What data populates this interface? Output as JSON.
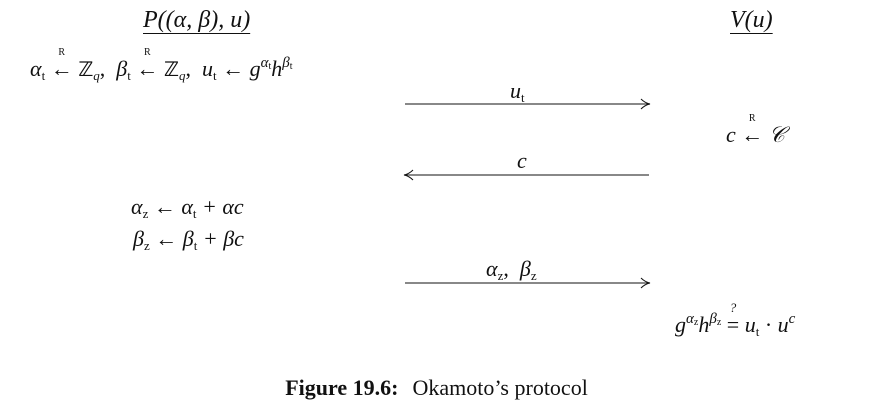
{
  "prover": {
    "title": "P((α, β), u)",
    "line1": {
      "alpha": "α",
      "t": "t",
      "rand": "R",
      "Zq": "ℤ",
      "q": "q",
      "beta": "β",
      "u": "u",
      "arrow": "←",
      "g": "g",
      "h": "h"
    },
    "alpha_z": {
      "lhs": "α",
      "z": "z",
      "arrow": "←",
      "a": "α",
      "t": "t",
      "rest": "+ αc"
    },
    "beta_z": {
      "lhs": "β",
      "z": "z",
      "arrow": "←",
      "a": "β",
      "t": "t",
      "rest": "+ βc"
    }
  },
  "verifier": {
    "title": "V(u)",
    "challenge": {
      "c": "c",
      "rand": "R",
      "arrow": "←",
      "set": "𝒞"
    },
    "check": {
      "g": "g",
      "alpha": "α",
      "beta": "β",
      "z": "z",
      "h": "h",
      "eq": "=",
      "q": "?",
      "u": "u",
      "t": "t",
      "dot": "·",
      "c": "c"
    }
  },
  "messages": [
    {
      "label": "u",
      "sub": "t",
      "direction": "right"
    },
    {
      "label": "c",
      "direction": "left"
    },
    {
      "label": "α",
      "sub": "z",
      "label2": "β",
      "direction": "right"
    }
  ],
  "caption": {
    "number": "Figure 19.6:",
    "text": "Okamoto’s protocol"
  }
}
